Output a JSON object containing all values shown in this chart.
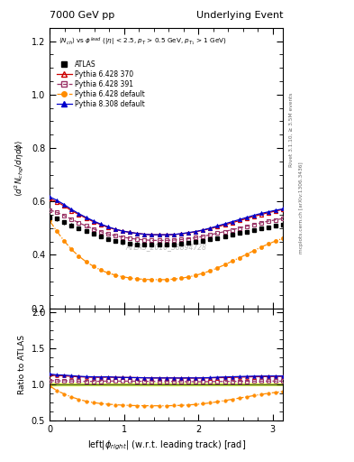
{
  "title_left": "7000 GeV pp",
  "title_right": "Underlying Event",
  "ylabel_main": "\\langle d^2 N_{chg}/d\\eta d\\phi \\rangle",
  "ylabel_ratio": "Ratio to ATLAS",
  "watermark": "ATLAS_2010_S8894728",
  "ylim_main": [
    0.2,
    1.25
  ],
  "ylim_ratio": [
    0.5,
    2.05
  ],
  "xlim": [
    0.0,
    3.14159
  ],
  "x_atlas": [
    0.0,
    0.098,
    0.196,
    0.295,
    0.393,
    0.491,
    0.589,
    0.687,
    0.785,
    0.884,
    0.982,
    1.08,
    1.178,
    1.276,
    1.374,
    1.473,
    1.571,
    1.669,
    1.767,
    1.865,
    1.963,
    2.062,
    2.16,
    2.258,
    2.356,
    2.454,
    2.553,
    2.651,
    2.749,
    2.847,
    2.945,
    3.043,
    3.14159
  ],
  "y_atlas": [
    0.54,
    0.535,
    0.522,
    0.51,
    0.499,
    0.489,
    0.478,
    0.468,
    0.458,
    0.452,
    0.447,
    0.443,
    0.44,
    0.438,
    0.437,
    0.437,
    0.437,
    0.438,
    0.441,
    0.444,
    0.448,
    0.453,
    0.458,
    0.463,
    0.469,
    0.475,
    0.481,
    0.487,
    0.493,
    0.499,
    0.504,
    0.509,
    0.514
  ],
  "ye_atlas": [
    0.01,
    0.009,
    0.008,
    0.008,
    0.008,
    0.007,
    0.007,
    0.007,
    0.007,
    0.007,
    0.007,
    0.007,
    0.007,
    0.007,
    0.007,
    0.007,
    0.007,
    0.007,
    0.007,
    0.007,
    0.007,
    0.007,
    0.007,
    0.007,
    0.007,
    0.007,
    0.007,
    0.007,
    0.007,
    0.007,
    0.007,
    0.007,
    0.007
  ],
  "x_p6370": [
    0.0,
    0.098,
    0.196,
    0.295,
    0.393,
    0.491,
    0.589,
    0.687,
    0.785,
    0.884,
    0.982,
    1.08,
    1.178,
    1.276,
    1.374,
    1.473,
    1.571,
    1.669,
    1.767,
    1.865,
    1.963,
    2.062,
    2.16,
    2.258,
    2.356,
    2.454,
    2.553,
    2.651,
    2.749,
    2.847,
    2.945,
    3.043,
    3.14159
  ],
  "y_p6370": [
    0.61,
    0.598,
    0.583,
    0.565,
    0.551,
    0.537,
    0.524,
    0.513,
    0.503,
    0.495,
    0.489,
    0.484,
    0.48,
    0.477,
    0.475,
    0.475,
    0.475,
    0.476,
    0.478,
    0.482,
    0.486,
    0.492,
    0.498,
    0.505,
    0.512,
    0.52,
    0.528,
    0.536,
    0.544,
    0.551,
    0.558,
    0.564,
    0.57
  ],
  "x_p6391": [
    0.0,
    0.098,
    0.196,
    0.295,
    0.393,
    0.491,
    0.589,
    0.687,
    0.785,
    0.884,
    0.982,
    1.08,
    1.178,
    1.276,
    1.374,
    1.473,
    1.571,
    1.669,
    1.767,
    1.865,
    1.963,
    2.062,
    2.16,
    2.258,
    2.356,
    2.454,
    2.553,
    2.651,
    2.749,
    2.847,
    2.945,
    3.043,
    3.14159
  ],
  "y_p6391": [
    0.568,
    0.559,
    0.547,
    0.533,
    0.52,
    0.508,
    0.497,
    0.487,
    0.478,
    0.472,
    0.466,
    0.462,
    0.458,
    0.456,
    0.454,
    0.454,
    0.454,
    0.455,
    0.457,
    0.46,
    0.464,
    0.469,
    0.475,
    0.481,
    0.487,
    0.494,
    0.5,
    0.507,
    0.514,
    0.52,
    0.526,
    0.531,
    0.536
  ],
  "x_p6def": [
    0.0,
    0.098,
    0.196,
    0.295,
    0.393,
    0.491,
    0.589,
    0.687,
    0.785,
    0.884,
    0.982,
    1.08,
    1.178,
    1.276,
    1.374,
    1.473,
    1.571,
    1.669,
    1.767,
    1.865,
    1.963,
    2.062,
    2.16,
    2.258,
    2.356,
    2.454,
    2.553,
    2.651,
    2.749,
    2.847,
    2.945,
    3.043,
    3.14159
  ],
  "y_p6def": [
    0.528,
    0.488,
    0.452,
    0.42,
    0.395,
    0.374,
    0.357,
    0.343,
    0.332,
    0.324,
    0.318,
    0.313,
    0.31,
    0.308,
    0.307,
    0.307,
    0.307,
    0.309,
    0.312,
    0.317,
    0.323,
    0.331,
    0.34,
    0.351,
    0.363,
    0.376,
    0.389,
    0.402,
    0.416,
    0.429,
    0.441,
    0.452,
    0.462
  ],
  "x_p8def": [
    0.0,
    0.098,
    0.196,
    0.295,
    0.393,
    0.491,
    0.589,
    0.687,
    0.785,
    0.884,
    0.982,
    1.08,
    1.178,
    1.276,
    1.374,
    1.473,
    1.571,
    1.669,
    1.767,
    1.865,
    1.963,
    2.062,
    2.16,
    2.258,
    2.356,
    2.454,
    2.553,
    2.651,
    2.749,
    2.847,
    2.945,
    3.043,
    3.14159
  ],
  "y_p8def": [
    0.617,
    0.604,
    0.588,
    0.57,
    0.554,
    0.54,
    0.527,
    0.515,
    0.505,
    0.496,
    0.489,
    0.484,
    0.48,
    0.477,
    0.475,
    0.475,
    0.475,
    0.476,
    0.479,
    0.483,
    0.487,
    0.493,
    0.5,
    0.508,
    0.516,
    0.524,
    0.532,
    0.54,
    0.548,
    0.555,
    0.561,
    0.567,
    0.572
  ],
  "color_atlas": "#000000",
  "color_p6370": "#cc0000",
  "color_p6391": "#993366",
  "color_p6def": "#ff8c00",
  "color_p8def": "#0000cc",
  "color_band": "#ccee44",
  "yticks_main": [
    0.2,
    0.4,
    0.6,
    0.8,
    1.0,
    1.2
  ],
  "yticks_ratio": [
    0.5,
    1.0,
    1.5,
    2.0
  ],
  "xticks": [
    0,
    1,
    2,
    3
  ]
}
